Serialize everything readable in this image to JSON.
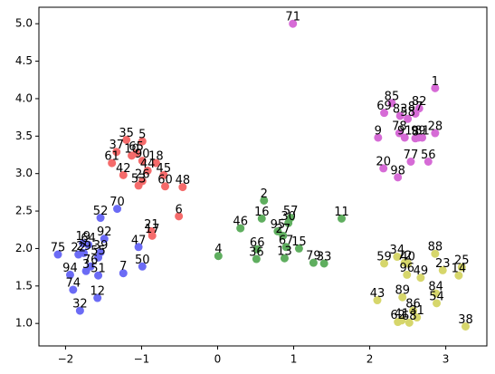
{
  "chart_data": {
    "type": "scatter",
    "xlim": [
      -2.35,
      3.54
    ],
    "ylim": [
      0.7,
      5.22
    ],
    "xticks": [
      {
        "value": -2,
        "label": "−2"
      },
      {
        "value": -1,
        "label": "−1"
      },
      0,
      1,
      2,
      3
    ],
    "yticks": [
      {
        "value": 1,
        "label": "1.0"
      },
      {
        "value": 1.5,
        "label": "1.5"
      },
      {
        "value": 2,
        "label": "2.0"
      },
      {
        "value": 2.5,
        "label": "2.5"
      },
      {
        "value": 3,
        "label": "3.0"
      },
      {
        "value": 3.5,
        "label": "3.5"
      },
      {
        "value": 4,
        "label": "4.0"
      },
      {
        "value": 4.5,
        "label": "4.5"
      },
      {
        "value": 5,
        "label": "5.0"
      }
    ],
    "series": [
      {
        "color": "#6b6bf5",
        "labels": [
          "75",
          "22",
          "29",
          "19",
          "64",
          "92",
          "39",
          "55",
          "3",
          "76",
          "51",
          "94",
          "74",
          "32",
          "12",
          "7",
          "50",
          "47",
          "52",
          "70"
        ],
        "x": [
          -2.1,
          -1.83,
          -1.76,
          -1.77,
          -1.7,
          -1.49,
          -1.54,
          -1.57,
          -1.73,
          -1.67,
          -1.57,
          -1.94,
          -1.9,
          -1.81,
          -1.58,
          -1.24,
          -0.99,
          -1.04,
          -1.54,
          -1.32
        ],
        "values": [
          1.92,
          1.92,
          1.94,
          2.07,
          2.05,
          2.13,
          1.95,
          1.88,
          1.7,
          1.76,
          1.64,
          1.65,
          1.45,
          1.17,
          1.34,
          1.67,
          1.76,
          2.02,
          2.41,
          2.53
        ]
      },
      {
        "color": "#f56b6b",
        "labels": [
          "35",
          "5",
          "37",
          "65",
          "61",
          "10",
          "90",
          "18",
          "44",
          "45",
          "42",
          "26",
          "53",
          "60",
          "48",
          "21",
          "6",
          "17"
        ],
        "x": [
          -1.2,
          -0.99,
          -1.33,
          -1.07,
          -1.39,
          -1.13,
          -0.99,
          -0.81,
          -0.92,
          -0.71,
          -1.24,
          -0.99,
          -1.04,
          -0.69,
          -0.46,
          -0.87,
          -0.51,
          -0.86
        ],
        "values": [
          3.45,
          3.43,
          3.29,
          3.27,
          3.14,
          3.24,
          3.17,
          3.14,
          3.04,
          2.98,
          2.98,
          2.9,
          2.84,
          2.83,
          2.82,
          2.23,
          2.43,
          2.17
        ]
      },
      {
        "color": "#5fae5f",
        "labels": [
          "2",
          "46",
          "16",
          "30",
          "57",
          "95",
          "27",
          "67",
          "15",
          "13",
          "66",
          "36",
          "4",
          "11",
          "79",
          "33"
        ],
        "x": [
          0.61,
          0.3,
          0.58,
          0.93,
          0.96,
          0.79,
          0.86,
          0.9,
          1.07,
          0.88,
          0.52,
          0.51,
          0.01,
          1.63,
          1.26,
          1.4
        ],
        "values": [
          2.64,
          2.27,
          2.4,
          2.34,
          2.41,
          2.23,
          2.17,
          2.02,
          2.0,
          1.87,
          1.99,
          1.86,
          1.9,
          2.4,
          1.81,
          1.8
        ]
      },
      {
        "color": "#d6d66b",
        "labels": [
          "34",
          "72",
          "40",
          "59",
          "88",
          "25",
          "14",
          "23",
          "96",
          "49",
          "43",
          "89",
          "84",
          "54",
          "86",
          "31",
          "62",
          "41",
          "68",
          "38"
        ],
        "x": [
          2.36,
          2.46,
          2.5,
          2.19,
          2.86,
          3.21,
          3.17,
          2.96,
          2.49,
          2.67,
          2.1,
          2.43,
          2.87,
          2.88,
          2.57,
          2.62,
          2.37,
          2.42,
          2.52,
          3.26
        ],
        "values": [
          1.89,
          1.81,
          1.8,
          1.8,
          1.93,
          1.75,
          1.64,
          1.71,
          1.65,
          1.61,
          1.31,
          1.35,
          1.4,
          1.27,
          1.17,
          1.08,
          1.02,
          1.04,
          1.01,
          0.96
        ]
      },
      {
        "color": "#d66bd6",
        "labels": [
          "1",
          "85",
          "69",
          "83",
          "58",
          "87",
          "82",
          "78",
          "91",
          "8",
          "99",
          "81",
          "28",
          "9",
          "77",
          "56",
          "20",
          "98",
          "71"
        ],
        "x": [
          2.86,
          2.29,
          2.19,
          2.4,
          2.5,
          2.6,
          2.65,
          2.39,
          2.46,
          2.6,
          2.64,
          2.69,
          2.86,
          2.11,
          2.54,
          2.77,
          2.18,
          2.37,
          0.99
        ],
        "values": [
          4.14,
          3.94,
          3.81,
          3.77,
          3.73,
          3.8,
          3.87,
          3.54,
          3.48,
          3.47,
          3.48,
          3.48,
          3.54,
          3.48,
          3.16,
          3.16,
          3.07,
          2.95,
          5.0
        ]
      }
    ]
  }
}
